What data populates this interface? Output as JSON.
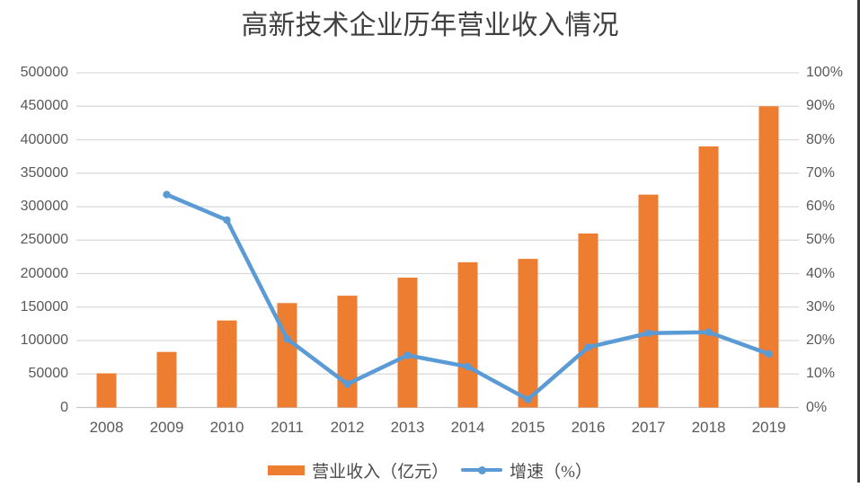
{
  "title": "高新技术企业历年营业收入情况",
  "legend": {
    "bar_label": "营业收入（亿元）",
    "line_label": "增速（%）"
  },
  "colors": {
    "bar": "#ED7D31",
    "line": "#5B9BD5",
    "gridline": "#D9D9D9",
    "axis_line": "#C9C9C9",
    "tick_text": "#595959",
    "title_text": "#404040"
  },
  "chart_data": {
    "type": "bar+line combo, dual axis",
    "title": "高新技术企业历年营业收入情况",
    "categories": [
      "2008",
      "2009",
      "2010",
      "2011",
      "2012",
      "2013",
      "2014",
      "2015",
      "2016",
      "2017",
      "2018",
      "2019"
    ],
    "series": [
      {
        "name": "营业收入（亿元）",
        "type": "bar",
        "axis": "left",
        "values": [
          51000,
          83000,
          130000,
          156000,
          167000,
          194000,
          217000,
          222000,
          260000,
          318000,
          390000,
          450000
        ]
      },
      {
        "name": "增速（%）",
        "type": "line",
        "axis": "right",
        "values": [
          null,
          63.6,
          56.0,
          20.5,
          7.0,
          15.6,
          12.2,
          2.4,
          18.0,
          22.2,
          22.5,
          16.0
        ]
      }
    ],
    "left_axis": {
      "min": 0,
      "max": 500000,
      "ticks": [
        "0",
        "50000",
        "100000",
        "150000",
        "200000",
        "250000",
        "300000",
        "350000",
        "400000",
        "450000",
        "500000"
      ]
    },
    "right_axis": {
      "min": 0,
      "max": 100,
      "ticks": [
        "0%",
        "10%",
        "20%",
        "30%",
        "40%",
        "50%",
        "60%",
        "70%",
        "80%",
        "90%",
        "100%"
      ]
    },
    "grid": "horizontal gridlines on, light gray",
    "legend_position": "bottom center"
  }
}
